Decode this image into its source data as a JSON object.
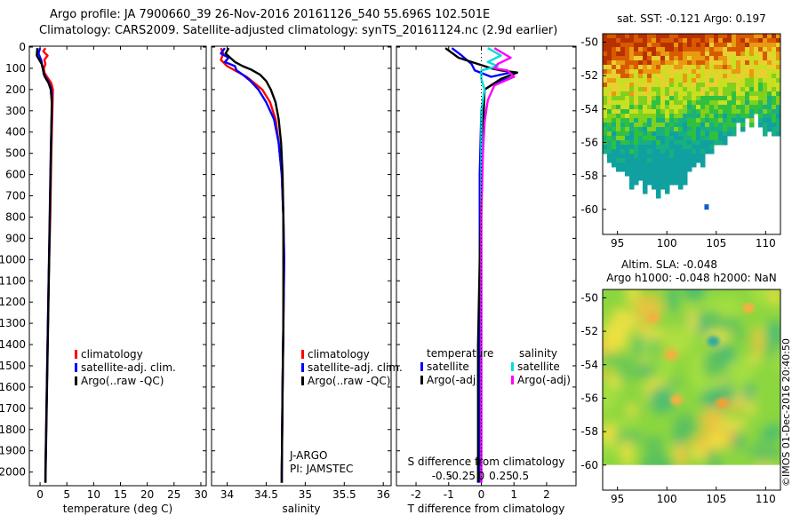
{
  "header": {
    "line1": "Argo profile: JA 7900660_39 26-Nov-2016 20161126_540 55.696S 102.501E",
    "line2": "Climatology: CARS2009. Satellite-adjusted climatology: synTS_20161124.nc (2.9d earlier)"
  },
  "colors": {
    "climatology": "#ff0000",
    "satellite": "#0000ff",
    "argo": "#000000",
    "sal_satellite": "#00dddd",
    "sal_argo": "#ff00ff"
  },
  "depth_axis": {
    "ticks": [
      0,
      100,
      200,
      300,
      400,
      500,
      600,
      700,
      800,
      900,
      1000,
      1100,
      1200,
      1300,
      1400,
      1500,
      1600,
      1700,
      1800,
      1900,
      2000
    ],
    "range": [
      0,
      2060
    ]
  },
  "chart_data": [
    {
      "type": "line",
      "id": "temperature",
      "xlabel": "temperature (deg C)",
      "xlim": [
        -2,
        31
      ],
      "xticks": [
        0,
        5,
        10,
        15,
        20,
        25,
        30
      ],
      "legend": [
        "climatology",
        "satellite-adj. clim.",
        "Argo(..raw -QC)"
      ],
      "series": [
        {
          "name": "climatology",
          "color": "#ff0000",
          "points": [
            [
              1.0,
              5
            ],
            [
              0.6,
              20
            ],
            [
              1.4,
              40
            ],
            [
              0.8,
              60
            ],
            [
              1.0,
              80
            ],
            [
              0.7,
              100
            ],
            [
              0.8,
              120
            ],
            [
              1.3,
              140
            ],
            [
              2.1,
              170
            ],
            [
              2.4,
              200
            ],
            [
              2.3,
              300
            ],
            [
              2.1,
              500
            ],
            [
              1.9,
              800
            ],
            [
              1.6,
              1100
            ],
            [
              1.4,
              1400
            ],
            [
              1.2,
              1700
            ],
            [
              1.0,
              2000
            ],
            [
              1.0,
              2050
            ]
          ]
        },
        {
          "name": "satellite-adj. clim.",
          "color": "#0000ff",
          "points": [
            [
              0.0,
              5
            ],
            [
              -0.3,
              30
            ],
            [
              0.2,
              60
            ],
            [
              0.5,
              100
            ],
            [
              0.7,
              130
            ],
            [
              1.5,
              160
            ],
            [
              2.0,
              190
            ],
            [
              2.2,
              220
            ],
            [
              2.2,
              300
            ],
            [
              2.0,
              500
            ],
            [
              1.8,
              800
            ],
            [
              1.6,
              1100
            ],
            [
              1.4,
              1400
            ],
            [
              1.2,
              1700
            ],
            [
              1.0,
              2000
            ],
            [
              1.0,
              2050
            ]
          ]
        },
        {
          "name": "Argo(..raw -QC)",
          "color": "#000000",
          "points": [
            [
              -0.5,
              5
            ],
            [
              -0.6,
              40
            ],
            [
              0.3,
              80
            ],
            [
              0.6,
              110
            ],
            [
              0.9,
              140
            ],
            [
              1.6,
              170
            ],
            [
              2.0,
              200
            ],
            [
              2.2,
              260
            ],
            [
              2.1,
              400
            ],
            [
              1.9,
              700
            ],
            [
              1.7,
              1000
            ],
            [
              1.5,
              1300
            ],
            [
              1.3,
              1600
            ],
            [
              1.1,
              1900
            ],
            [
              1.0,
              2050
            ]
          ]
        }
      ]
    },
    {
      "type": "line",
      "id": "salinity",
      "xlabel": "salinity",
      "xlim": [
        33.8,
        36.1
      ],
      "xticks": [
        34,
        34.5,
        35,
        35.5,
        36
      ],
      "xticklabels": [
        "34",
        "34.5",
        "35",
        "35.5",
        "36"
      ],
      "legend": [
        "climatology",
        "satellite-adj. clim.",
        "Argo(..raw -QC)"
      ],
      "annotation": [
        "J-ARGO",
        "PI: JAMSTEC"
      ],
      "series": [
        {
          "name": "climatology",
          "color": "#ff0000",
          "points": [
            [
              33.92,
              5
            ],
            [
              33.95,
              30
            ],
            [
              33.92,
              60
            ],
            [
              34.0,
              90
            ],
            [
              34.1,
              110
            ],
            [
              34.25,
              140
            ],
            [
              34.35,
              170
            ],
            [
              34.45,
              200
            ],
            [
              34.55,
              260
            ],
            [
              34.62,
              340
            ],
            [
              34.66,
              450
            ],
            [
              34.7,
              600
            ],
            [
              34.72,
              800
            ],
            [
              34.73,
              1000
            ],
            [
              34.72,
              1300
            ],
            [
              34.71,
              1600
            ],
            [
              34.7,
              2000
            ],
            [
              34.7,
              2050
            ]
          ]
        },
        {
          "name": "satellite-adj. clim.",
          "color": "#0000ff",
          "points": [
            [
              33.97,
              5
            ],
            [
              33.92,
              30
            ],
            [
              34.02,
              50
            ],
            [
              33.97,
              70
            ],
            [
              34.1,
              90
            ],
            [
              34.12,
              110
            ],
            [
              34.2,
              130
            ],
            [
              34.3,
              160
            ],
            [
              34.4,
              200
            ],
            [
              34.5,
              260
            ],
            [
              34.6,
              340
            ],
            [
              34.66,
              450
            ],
            [
              34.7,
              600
            ],
            [
              34.72,
              800
            ],
            [
              34.73,
              1000
            ],
            [
              34.72,
              1300
            ],
            [
              34.71,
              1600
            ],
            [
              34.7,
              2000
            ],
            [
              34.7,
              2050
            ]
          ]
        },
        {
          "name": "Argo(..raw -QC)",
          "color": "#000000",
          "points": [
            [
              34.02,
              5
            ],
            [
              33.98,
              30
            ],
            [
              34.1,
              70
            ],
            [
              34.2,
              90
            ],
            [
              34.3,
              105
            ],
            [
              34.42,
              130
            ],
            [
              34.5,
              160
            ],
            [
              34.56,
              200
            ],
            [
              34.62,
              260
            ],
            [
              34.66,
              340
            ],
            [
              34.69,
              450
            ],
            [
              34.71,
              600
            ],
            [
              34.72,
              800
            ],
            [
              34.72,
              1000
            ],
            [
              34.72,
              1300
            ],
            [
              34.71,
              1600
            ],
            [
              34.7,
              2000
            ],
            [
              34.7,
              2050
            ]
          ]
        }
      ]
    },
    {
      "type": "line",
      "id": "difference",
      "xlabel": "T difference from climatology",
      "top_label": "S difference from climatology",
      "xlim": [
        -2.6,
        2.9
      ],
      "xticks": [
        -2,
        -1,
        0,
        1,
        2
      ],
      "s_ticklabels": [
        "-0.5",
        "-0.25",
        "0",
        "0.25",
        "0.5"
      ],
      "legend_headers": [
        "temperature",
        "salinity"
      ],
      "legend_left": [
        "satellite",
        "Argo(-adj)"
      ],
      "legend_right": [
        "satellite",
        "Argo(-adj)"
      ],
      "series": [
        {
          "name": "T satellite",
          "color": "#0000ff",
          "points": [
            [
              -0.9,
              5
            ],
            [
              -0.6,
              40
            ],
            [
              -0.3,
              80
            ],
            [
              -0.2,
              110
            ],
            [
              0.3,
              140
            ],
            [
              0.9,
              120
            ],
            [
              1.0,
              140
            ],
            [
              0.4,
              170
            ],
            [
              0.1,
              200
            ],
            [
              0.0,
              300
            ],
            [
              -0.05,
              600
            ],
            [
              -0.05,
              1000
            ],
            [
              -0.05,
              1500
            ],
            [
              -0.05,
              2050
            ]
          ]
        },
        {
          "name": "T Argo(-adj)",
          "color": "#000000",
          "points": [
            [
              -1.1,
              5
            ],
            [
              -0.7,
              50
            ],
            [
              -0.1,
              80
            ],
            [
              0.3,
              100
            ],
            [
              0.6,
              110
            ],
            [
              1.1,
              120
            ],
            [
              0.6,
              150
            ],
            [
              0.1,
              200
            ],
            [
              0.05,
              400
            ],
            [
              0.0,
              700
            ],
            [
              -0.05,
              1000
            ],
            [
              -0.1,
              1400
            ],
            [
              -0.1,
              2050
            ]
          ]
        },
        {
          "name": "S satellite",
          "color": "#00dddd",
          "points": [
            [
              0.2,
              5
            ],
            [
              0.6,
              40
            ],
            [
              0.2,
              70
            ],
            [
              0.5,
              90
            ],
            [
              0.0,
              110
            ],
            [
              0.0,
              150
            ],
            [
              0.1,
              200
            ],
            [
              0.0,
              300
            ],
            [
              0.0,
              600
            ],
            [
              0.0,
              1000
            ],
            [
              0.0,
              1500
            ],
            [
              0.0,
              2050
            ]
          ]
        },
        {
          "name": "S Argo(-adj)",
          "color": "#ff00ff",
          "points": [
            [
              0.4,
              5
            ],
            [
              0.9,
              50
            ],
            [
              0.5,
              80
            ],
            [
              0.4,
              100
            ],
            [
              0.8,
              110
            ],
            [
              1.0,
              140
            ],
            [
              0.4,
              180
            ],
            [
              0.2,
              250
            ],
            [
              0.1,
              350
            ],
            [
              0.05,
              500
            ],
            [
              0.0,
              800
            ],
            [
              0.0,
              1200
            ],
            [
              0.0,
              2050
            ]
          ]
        }
      ]
    },
    {
      "type": "heatmap",
      "id": "sst_map",
      "title": "sat. SST: -0.121 Argo: 0.197",
      "xlim": [
        93.5,
        111.5
      ],
      "ylim": [
        -61.5,
        -49.5
      ],
      "xticks": [
        95,
        100,
        105,
        110
      ],
      "yticks": [
        -50,
        -52,
        -54,
        -56,
        -58,
        -60
      ]
    },
    {
      "type": "heatmap",
      "id": "sla_map",
      "title_line1": "Altim. SLA: -0.048",
      "title_line2": "Argo h1000: -0.048 h2000: NaN",
      "xlim": [
        93.5,
        111.5
      ],
      "ylim": [
        -61.5,
        -49.5
      ],
      "xticks": [
        95,
        100,
        105,
        110
      ],
      "yticks": [
        -50,
        -52,
        -54,
        -56,
        -58,
        -60
      ]
    }
  ],
  "credit": "©IMOS 01-Dec-2016 20:40:50"
}
